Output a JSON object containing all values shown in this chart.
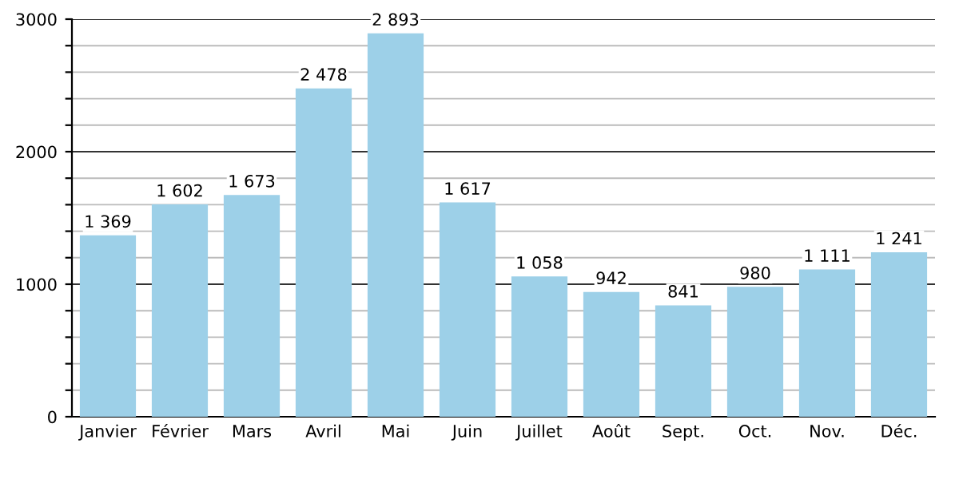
{
  "chart_data": {
    "type": "bar",
    "categories": [
      "Janvier",
      "Février",
      "Mars",
      "Avril",
      "Mai",
      "Juin",
      "Juillet",
      "Août",
      "Sept.",
      "Oct.",
      "Nov.",
      "Déc."
    ],
    "values": [
      1369,
      1602,
      1673,
      2478,
      2893,
      1617,
      1058,
      942,
      841,
      980,
      1111,
      1241
    ],
    "value_labels": [
      "1 369",
      "1 602",
      "1 673",
      "2 478",
      "2 893",
      "1 617",
      "1 058",
      "942",
      "841",
      "980",
      "1 111",
      "1 241"
    ],
    "color": "#9dd0e8",
    "ylim": [
      0,
      3000
    ],
    "yticks": [
      0,
      {
        "value": 200,
        "label": null
      },
      {
        "value": 400,
        "label": null
      },
      {
        "value": 600,
        "label": null
      },
      {
        "value": 800,
        "label": null
      },
      1000,
      {
        "value": 1200,
        "label": null
      },
      {
        "value": 1400,
        "label": null
      },
      {
        "value": 1600,
        "label": null
      },
      {
        "value": 1800,
        "label": null
      },
      2000,
      {
        "value": 2200,
        "label": null
      },
      {
        "value": 2400,
        "label": null
      },
      {
        "value": 2600,
        "label": null
      },
      {
        "value": 2800,
        "label": null
      },
      3000
    ],
    "grid": "y"
  }
}
